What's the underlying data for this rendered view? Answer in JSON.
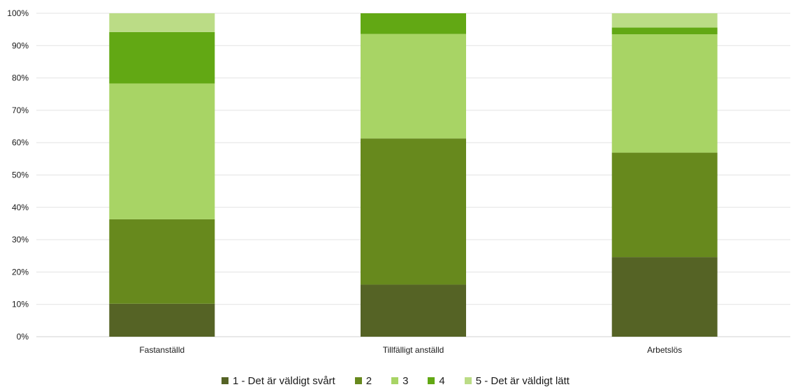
{
  "chart_data": {
    "type": "bar",
    "stacked": true,
    "categories": [
      "Fastanställd",
      "Tillfälligt anställd",
      "Arbetslös"
    ],
    "series": [
      {
        "name": "1 - Det är väldigt svårt",
        "color": "#556325",
        "values": [
          10.2,
          16.1,
          24.6
        ]
      },
      {
        "name": "2",
        "color": "#67891d",
        "values": [
          26.1,
          45.2,
          32.3
        ]
      },
      {
        "name": "3",
        "color": "#a8d465",
        "values": [
          42.0,
          32.3,
          36.6
        ]
      },
      {
        "name": "4",
        "color": "#62a814",
        "values": [
          15.9,
          6.4,
          2.1
        ]
      },
      {
        "name": "5 - Det är väldigt lätt",
        "color": "#bbdc86",
        "values": [
          5.8,
          0.0,
          4.4
        ]
      }
    ],
    "ylim": [
      0,
      100
    ],
    "yticks": [
      "0%",
      "10%",
      "20%",
      "30%",
      "40%",
      "50%",
      "60%",
      "70%",
      "80%",
      "90%",
      "100%"
    ],
    "grid": true,
    "legend_position": "bottom"
  }
}
